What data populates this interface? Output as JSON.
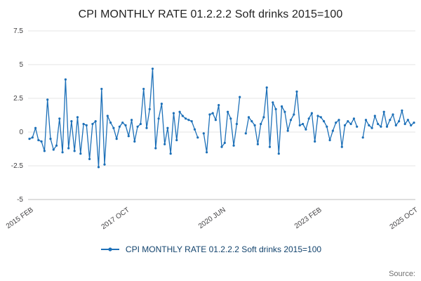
{
  "chart_data": {
    "type": "line",
    "title": "CPI MONTHLY RATE 01.2.2.2 Soft drinks 2015=100",
    "series_name": "CPI MONTHLY RATE 01.2.2.2 Soft drinks 2015=100",
    "color": "#1d70b8",
    "ylim": [
      -5,
      7.5
    ],
    "yticks": [
      7.5,
      5,
      2.5,
      0,
      -2.5,
      -5
    ],
    "xtick_labels": [
      "2015 FEB",
      "2017 OCT",
      "2020 JUN",
      "2023 FEB",
      "2025 OCT"
    ],
    "xtick_indices": [
      0,
      32,
      64,
      96,
      128
    ],
    "x_start": "2015 FEB",
    "x_end": "2025 OCT",
    "grid": true,
    "legend_position": "bottom",
    "values": [
      -0.5,
      -0.4,
      0.3,
      -0.6,
      -0.7,
      -1.4,
      2.4,
      -0.5,
      -1.3,
      -1.0,
      1.0,
      -1.5,
      3.9,
      -1.2,
      0.8,
      -1.4,
      1.1,
      -1.6,
      0.6,
      0.5,
      -2.0,
      0.6,
      0.8,
      -2.6,
      3.2,
      -2.4,
      1.2,
      0.7,
      0.3,
      -0.5,
      0.4,
      0.7,
      0.5,
      -0.3,
      0.9,
      -0.7,
      0.4,
      0.6,
      3.2,
      0.3,
      1.7,
      4.7,
      -1.2,
      1.0,
      2.1,
      -0.9,
      0.3,
      -1.6,
      1.4,
      -0.6,
      1.5,
      1.2,
      1.0,
      0.9,
      0.8,
      0.2,
      -0.4,
      null,
      -0.1,
      -1.5,
      1.3,
      1.4,
      0.9,
      2.0,
      -1.1,
      -0.8,
      1.5,
      1.0,
      -1.0,
      0.6,
      2.6,
      null,
      -0.1,
      1.1,
      0.8,
      0.5,
      -0.9,
      0.6,
      1.1,
      3.3,
      -1.1,
      2.2,
      1.7,
      -1.6,
      1.9,
      1.5,
      0.1,
      0.9,
      1.3,
      3.0,
      0.5,
      0.6,
      0.2,
      1.0,
      1.4,
      -0.7,
      1.2,
      1.1,
      0.8,
      0.4,
      -0.6,
      0.1,
      0.7,
      0.9,
      -1.1,
      0.5,
      0.8,
      0.6,
      1.0,
      0.4,
      null,
      -0.4,
      0.9,
      0.5,
      0.3,
      1.2,
      0.6,
      0.4,
      1.5,
      0.4,
      0.9,
      1.3,
      0.5,
      0.8,
      1.6,
      0.6,
      0.9,
      0.5,
      0.7
    ]
  },
  "footer": {
    "source_label": "Source:"
  }
}
